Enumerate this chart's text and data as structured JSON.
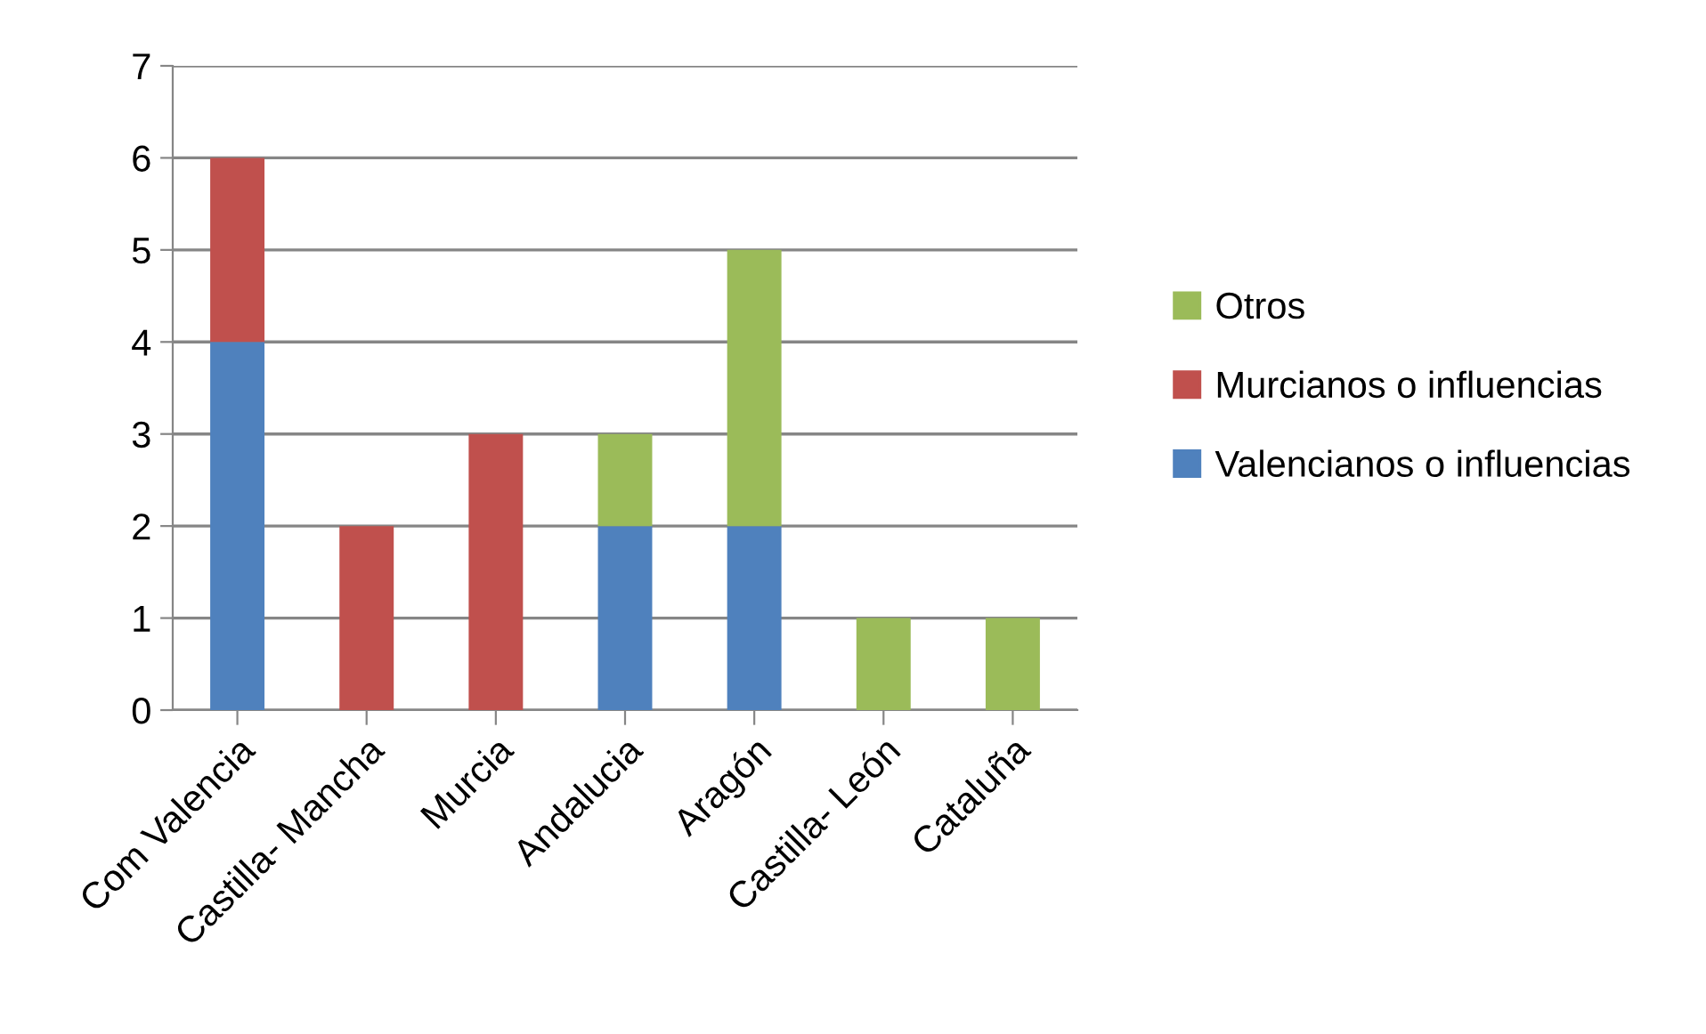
{
  "chart_data": {
    "type": "bar",
    "stacked": true,
    "categories": [
      "Com Valencia",
      "Castilla- Mancha",
      "Murcia",
      "Andalucia",
      "Aragón",
      "Castilla- León",
      "Cataluña"
    ],
    "series": [
      {
        "name": "Valencianos o influencias",
        "color": "#4f81bd",
        "values": [
          4,
          0,
          0,
          2,
          2,
          0,
          0
        ]
      },
      {
        "name": "Murcianos o influencias",
        "color": "#c0504d",
        "values": [
          2,
          2,
          3,
          0,
          0,
          0,
          0
        ]
      },
      {
        "name": "Otros",
        "color": "#9bbb59",
        "values": [
          0,
          0,
          0,
          1,
          3,
          1,
          1
        ]
      }
    ],
    "ylim": [
      0,
      7
    ],
    "yticks": [
      0,
      1,
      2,
      3,
      4,
      5,
      6,
      7
    ],
    "grid": "y",
    "legend": "right"
  }
}
